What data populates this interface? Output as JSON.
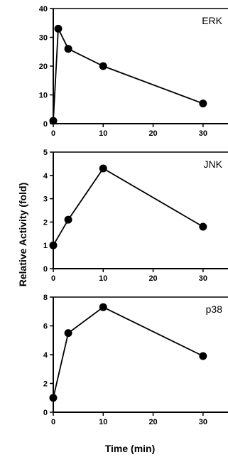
{
  "chart_data": [
    {
      "type": "line",
      "title": "ERK",
      "x": [
        0,
        1,
        3,
        10,
        30
      ],
      "values": [
        1,
        33,
        26,
        20,
        7
      ],
      "xlim": [
        0,
        35
      ],
      "ylim": [
        0,
        40
      ],
      "yticks": [
        0,
        10,
        20,
        30,
        40
      ],
      "xticks": [
        0,
        10,
        20,
        30
      ],
      "xticks_labeled": false,
      "grid": false
    },
    {
      "type": "line",
      "title": "JNK",
      "x": [
        0,
        3,
        10,
        30
      ],
      "values": [
        1,
        2.1,
        4.3,
        1.8
      ],
      "xlim": [
        0,
        35
      ],
      "ylim": [
        0,
        5
      ],
      "yticks": [
        0,
        1,
        2,
        3,
        4,
        5
      ],
      "xticks": [
        0,
        10,
        20,
        30
      ],
      "xticks_labeled": true,
      "grid": false
    },
    {
      "type": "line",
      "title": "p38",
      "x": [
        0,
        3,
        10,
        30
      ],
      "values": [
        1,
        5.5,
        7.3,
        3.9
      ],
      "xlim": [
        0,
        35
      ],
      "ylim": [
        0,
        8
      ],
      "yticks": [
        0,
        2,
        4,
        6,
        8
      ],
      "xticks": [
        0,
        10,
        20,
        30
      ],
      "xticks_labeled": true,
      "grid": false
    }
  ],
  "ylabel": "Relative Activity (fold)",
  "xlabel": "Time (min)"
}
